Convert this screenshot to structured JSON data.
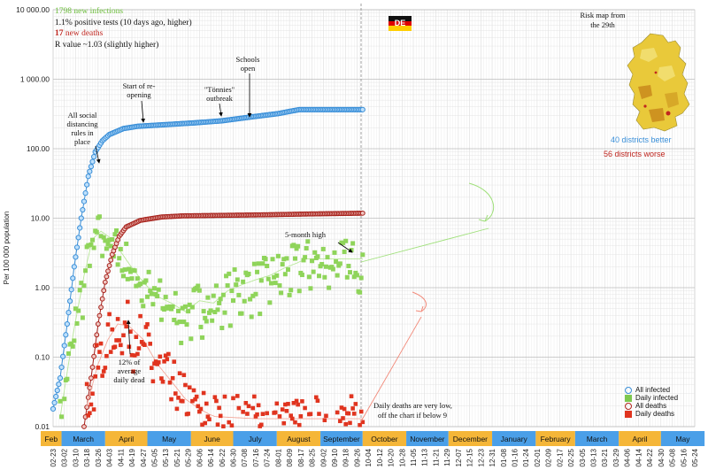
{
  "notes": {
    "line1": "1798 new infections",
    "line2": "1.1% positive tests (10 days ago, higher)",
    "line3_bold": "17",
    "line3_rest": " new deaths",
    "line4": "R value ~1.03 (slightly higher)"
  },
  "flag_label": "DE",
  "risk_map": {
    "title_line1": "Risk map from",
    "title_line2": "the 29th",
    "better": "40 districts better",
    "worse": "56 districts worse"
  },
  "annotations": {
    "social": [
      "All social",
      "distancing",
      "rules in",
      "place"
    ],
    "reopen": [
      "Start of re-",
      "opening"
    ],
    "tonnies": [
      "\"Tönnies\"",
      "outbreak"
    ],
    "schools": [
      "Schools",
      "open"
    ],
    "high": "5-month high",
    "dead": [
      "12% of",
      "average",
      "daily dead"
    ],
    "deaths_low": [
      "Daily deaths are very low,",
      "off the chart if below 9"
    ]
  },
  "legend": [
    {
      "label": "All infected",
      "color": "#3a8fd8",
      "shape": "open-circle"
    },
    {
      "label": "Daily infected",
      "color": "#7ec850",
      "shape": "square"
    },
    {
      "label": "All deaths",
      "color": "#b3261e",
      "shape": "open-circle"
    },
    {
      "label": "Daily deaths",
      "color": "#e0341f",
      "shape": "square"
    }
  ],
  "colors": {
    "blue": "#4a9fe8",
    "green": "#8fd45a",
    "darkred": "#a6201a",
    "red": "#e0341f",
    "month_orange": "#f5b638",
    "month_blue": "#4a9fe8"
  },
  "chart_data": {
    "type": "scatter",
    "ylabel": "Per 100 000 population",
    "yscale": "log",
    "ylim": [
      0.01,
      10000
    ],
    "yticks": [
      "0.01",
      "0.10",
      "1.00",
      "10.00",
      "100.00",
      "1 000.00",
      "10 000.00"
    ],
    "months": [
      "Feb",
      "March",
      "April",
      "May",
      "June",
      "July",
      "August",
      "September",
      "October",
      "November",
      "December",
      "January",
      "February",
      "March",
      "April",
      "May"
    ],
    "xticks": [
      "02-23",
      "03-02",
      "03-10",
      "03-18",
      "03-26",
      "04-03",
      "04-11",
      "04-19",
      "04-27",
      "05-05",
      "05-13",
      "05-21",
      "05-29",
      "06-06",
      "06-14",
      "06-22",
      "06-30",
      "07-08",
      "07-16",
      "07-24",
      "08-01",
      "08-09",
      "08-17",
      "08-25",
      "09-02",
      "09-10",
      "09-18",
      "09-26",
      "10-04",
      "10-12",
      "10-20",
      "10-28",
      "11-05",
      "11-13",
      "11-21",
      "11-29",
      "12-07",
      "12-15",
      "12-23",
      "12-31",
      "01-08",
      "01-16",
      "01-24",
      "02-01",
      "02-09",
      "02-17",
      "02-25",
      "03-05",
      "03-13",
      "03-21",
      "03-29",
      "04-06",
      "04-14",
      "04-22",
      "04-30",
      "05-08",
      "05-16",
      "05-24"
    ],
    "series": [
      {
        "name": "All infected",
        "start": "02-23",
        "end": "09-30",
        "anchors": [
          [
            0,
            0.018
          ],
          [
            5,
            0.05
          ],
          [
            10,
            0.3
          ],
          [
            15,
            2
          ],
          [
            20,
            10
          ],
          [
            25,
            40
          ],
          [
            30,
            90
          ],
          [
            35,
            130
          ],
          [
            40,
            160
          ],
          [
            50,
            195
          ],
          [
            60,
            210
          ],
          [
            80,
            222
          ],
          [
            100,
            235
          ],
          [
            120,
            252
          ],
          [
            140,
            285
          ],
          [
            160,
            320
          ],
          [
            170,
            350
          ],
          [
            175,
            365
          ]
        ]
      },
      {
        "name": "Daily infected",
        "start": "02-27",
        "end": "09-30",
        "anchors": [
          [
            0,
            0.01
          ],
          [
            10,
            0.2
          ],
          [
            18,
            1.5
          ],
          [
            24,
            5
          ],
          [
            30,
            6.5
          ],
          [
            38,
            5
          ],
          [
            50,
            2.2
          ],
          [
            60,
            1.2
          ],
          [
            70,
            0.75
          ],
          [
            80,
            0.6
          ],
          [
            90,
            0.45
          ],
          [
            100,
            0.65
          ],
          [
            110,
            0.6
          ],
          [
            120,
            0.9
          ],
          [
            130,
            1.1
          ],
          [
            140,
            1.3
          ],
          [
            150,
            1.5
          ],
          [
            160,
            1.9
          ],
          [
            170,
            2.3
          ],
          [
            176,
            2.6
          ]
        ]
      },
      {
        "name": "All deaths",
        "start": "03-16",
        "end": "09-30",
        "anchors": [
          [
            0,
            0.01
          ],
          [
            5,
            0.05
          ],
          [
            10,
            0.3
          ],
          [
            15,
            1.2
          ],
          [
            20,
            3
          ],
          [
            25,
            5.5
          ],
          [
            30,
            7.5
          ],
          [
            40,
            9.3
          ],
          [
            55,
            10.4
          ],
          [
            70,
            10.8
          ],
          [
            100,
            11
          ],
          [
            130,
            11.2
          ],
          [
            160,
            11.5
          ],
          [
            198,
            11.8
          ]
        ]
      },
      {
        "name": "Daily deaths",
        "start": "03-18",
        "end": "09-30",
        "anchors": [
          [
            0,
            0.02
          ],
          [
            8,
            0.08
          ],
          [
            15,
            0.18
          ],
          [
            22,
            0.3
          ],
          [
            30,
            0.28
          ],
          [
            40,
            0.18
          ],
          [
            50,
            0.08
          ],
          [
            60,
            0.045
          ],
          [
            70,
            0.025
          ],
          [
            80,
            0.018
          ],
          [
            90,
            0.014
          ],
          [
            120,
            0.013
          ],
          [
            160,
            0.013
          ],
          [
            196,
            0.013
          ]
        ]
      }
    ]
  }
}
